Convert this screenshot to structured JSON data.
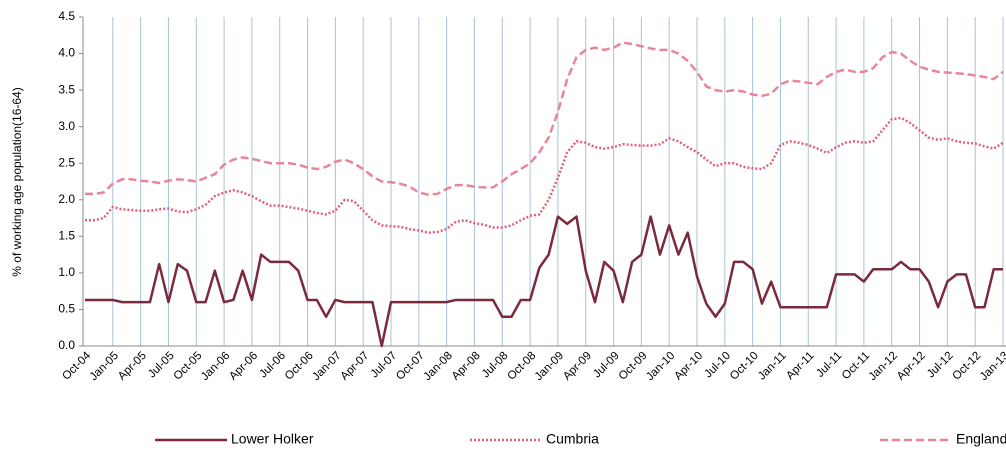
{
  "chart_data": {
    "type": "line",
    "ylabel": "% of working age population(16-64)",
    "categories": [
      "Oct-04",
      null,
      null,
      "Jan-05",
      null,
      null,
      "Apr-05",
      null,
      null,
      "Jul-05",
      null,
      null,
      "Oct-05",
      null,
      null,
      "Jan-06",
      null,
      null,
      "Apr-06",
      null,
      null,
      "Jul-06",
      null,
      null,
      "Oct-06",
      null,
      null,
      "Jan-07",
      null,
      null,
      "Apr-07",
      null,
      null,
      "Jul-07",
      null,
      null,
      "Oct-07",
      null,
      null,
      "Jan-08",
      null,
      null,
      "Apr-08",
      null,
      null,
      "Jul-08",
      null,
      null,
      "Oct-08",
      null,
      null,
      "Jan-09",
      null,
      null,
      "Apr-09",
      null,
      null,
      "Jul-09",
      null,
      null,
      "Oct-09",
      null,
      null,
      "Jan-10",
      null,
      null,
      "Apr-10",
      null,
      null,
      "Jul-10",
      null,
      null,
      "Oct-10",
      null,
      null,
      "Jan-11",
      null,
      null,
      "Apr-11",
      null,
      null,
      "Jul-11",
      null,
      null,
      "Oct-11",
      null,
      null,
      "Jan-12",
      null,
      null,
      "Apr-12",
      null,
      null,
      "Jul-12",
      null,
      null,
      "Oct-12",
      null,
      null,
      "Jan-13"
    ],
    "series": [
      {
        "name": "Lower Holker",
        "color": "#7b2a3e",
        "dash": "solid",
        "values": [
          0.63,
          0.63,
          0.63,
          0.63,
          0.6,
          0.6,
          0.6,
          0.6,
          1.12,
          0.6,
          1.12,
          1.03,
          0.6,
          0.6,
          1.03,
          0.6,
          0.63,
          1.03,
          0.63,
          1.25,
          1.15,
          1.15,
          1.15,
          1.03,
          0.63,
          0.63,
          0.4,
          0.63,
          0.6,
          0.6,
          0.6,
          0.6,
          0,
          0.6,
          0.6,
          0.6,
          0.6,
          0.6,
          0.6,
          0.6,
          0.63,
          0.63,
          0.63,
          0.63,
          0.63,
          0.4,
          0.4,
          0.63,
          0.63,
          1.07,
          1.25,
          1.77,
          1.67,
          1.77,
          1.03,
          0.6,
          1.15,
          1.03,
          0.6,
          1.15,
          1.25,
          1.77,
          1.25,
          1.65,
          1.25,
          1.55,
          0.95,
          0.58,
          0.4,
          0.58,
          1.15,
          1.15,
          1.05,
          0.58,
          0.88,
          0.53,
          0.53,
          0.53,
          0.53,
          0.53,
          0.53,
          0.98,
          0.98,
          0.98,
          0.88,
          1.05,
          1.05,
          1.05,
          1.15,
          1.05,
          1.05,
          0.88,
          0.53,
          0.88,
          0.98,
          0.98,
          0.53,
          0.53,
          1.05,
          1.05
        ]
      },
      {
        "name": "Cumbria",
        "color": "#e0607a",
        "dash": "dotted",
        "values": [
          1.72,
          1.72,
          1.75,
          1.9,
          1.87,
          1.86,
          1.85,
          1.85,
          1.87,
          1.88,
          1.84,
          1.83,
          1.87,
          1.93,
          2.05,
          2.1,
          2.13,
          2.1,
          2.05,
          1.98,
          1.92,
          1.92,
          1.9,
          1.88,
          1.85,
          1.82,
          1.8,
          1.85,
          2.0,
          1.98,
          1.85,
          1.72,
          1.65,
          1.64,
          1.63,
          1.6,
          1.58,
          1.55,
          1.56,
          1.6,
          1.7,
          1.72,
          1.68,
          1.66,
          1.62,
          1.62,
          1.65,
          1.72,
          1.78,
          1.8,
          2.0,
          2.3,
          2.65,
          2.8,
          2.78,
          2.72,
          2.7,
          2.72,
          2.76,
          2.75,
          2.74,
          2.74,
          2.76,
          2.84,
          2.8,
          2.72,
          2.65,
          2.55,
          2.46,
          2.5,
          2.5,
          2.45,
          2.43,
          2.42,
          2.5,
          2.75,
          2.8,
          2.78,
          2.75,
          2.7,
          2.64,
          2.72,
          2.78,
          2.8,
          2.78,
          2.8,
          2.95,
          3.1,
          3.12,
          3.05,
          2.95,
          2.85,
          2.82,
          2.84,
          2.8,
          2.78,
          2.77,
          2.73,
          2.7,
          2.78
        ]
      },
      {
        "name": "England",
        "color": "#e8859a",
        "dash": "dashed",
        "values": [
          2.08,
          2.08,
          2.1,
          2.22,
          2.28,
          2.28,
          2.26,
          2.25,
          2.23,
          2.26,
          2.28,
          2.27,
          2.25,
          2.3,
          2.35,
          2.48,
          2.55,
          2.58,
          2.56,
          2.53,
          2.5,
          2.5,
          2.5,
          2.48,
          2.44,
          2.42,
          2.45,
          2.52,
          2.55,
          2.5,
          2.42,
          2.32,
          2.25,
          2.24,
          2.22,
          2.18,
          2.1,
          2.07,
          2.08,
          2.15,
          2.2,
          2.2,
          2.18,
          2.17,
          2.17,
          2.25,
          2.35,
          2.42,
          2.5,
          2.65,
          2.85,
          3.2,
          3.65,
          3.95,
          4.05,
          4.08,
          4.05,
          4.08,
          4.15,
          4.13,
          4.1,
          4.07,
          4.05,
          4.05,
          4.0,
          3.9,
          3.75,
          3.55,
          3.5,
          3.48,
          3.5,
          3.48,
          3.44,
          3.42,
          3.45,
          3.58,
          3.63,
          3.62,
          3.6,
          3.58,
          3.68,
          3.75,
          3.78,
          3.75,
          3.75,
          3.8,
          3.95,
          4.02,
          4.0,
          3.9,
          3.82,
          3.78,
          3.75,
          3.74,
          3.73,
          3.72,
          3.7,
          3.68,
          3.65,
          3.75
        ]
      }
    ],
    "ylim": [
      0,
      4.5
    ],
    "yticks": [
      {
        "value": 0,
        "label": "0.0"
      },
      0.5,
      {
        "value": 1,
        "label": "1.0"
      },
      1.5,
      {
        "value": 2,
        "label": "2.0"
      },
      2.5,
      {
        "value": 3,
        "label": "3.0"
      },
      3.5,
      {
        "value": 4,
        "label": "4.0"
      },
      4.5
    ],
    "grid": "x"
  }
}
